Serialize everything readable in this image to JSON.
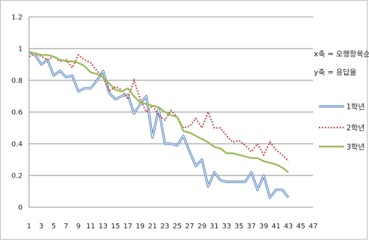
{
  "chart_data": {
    "type": "line",
    "x": [
      1,
      2,
      3,
      4,
      5,
      6,
      7,
      8,
      9,
      10,
      11,
      12,
      13,
      14,
      15,
      16,
      17,
      18,
      19,
      20,
      21,
      22,
      23,
      24,
      25,
      26,
      27,
      28,
      29,
      30,
      31,
      32,
      33,
      34,
      35,
      36,
      37,
      38,
      39,
      40,
      41,
      42,
      43
    ],
    "xticks": [
      1,
      3,
      5,
      7,
      9,
      11,
      13,
      15,
      17,
      19,
      21,
      23,
      25,
      27,
      29,
      31,
      33,
      35,
      37,
      39,
      41,
      43,
      45,
      47
    ],
    "xlim": [
      1,
      47
    ],
    "ylim": [
      0,
      1.2
    ],
    "yticks": [
      "0",
      "0.2",
      "0.4",
      "0.6",
      "0.8",
      "1",
      "1.2"
    ],
    "grid": "horizontal",
    "legend_position": "right",
    "notes": [
      "x축 = 오행항목순위",
      "y축 = 응답율"
    ],
    "series": [
      {
        "name": "1학년",
        "color": "#4f81bd",
        "style": "double",
        "values": [
          0.98,
          0.96,
          0.9,
          0.93,
          0.83,
          0.86,
          0.82,
          0.83,
          0.73,
          0.75,
          0.75,
          0.8,
          0.86,
          0.72,
          0.68,
          0.7,
          0.71,
          0.59,
          0.65,
          0.7,
          0.44,
          0.62,
          0.4,
          0.4,
          0.39,
          0.45,
          0.35,
          0.26,
          0.3,
          0.13,
          0.22,
          0.17,
          0.16,
          0.16,
          0.16,
          0.16,
          0.22,
          0.11,
          0.2,
          0.06,
          0.11,
          0.11,
          0.06
        ]
      },
      {
        "name": "2학년",
        "color": "#c0504d",
        "style": "dotted",
        "values": [
          0.95,
          0.97,
          0.95,
          0.93,
          0.95,
          0.92,
          0.93,
          0.88,
          0.96,
          0.93,
          0.91,
          0.86,
          0.82,
          0.73,
          0.76,
          0.74,
          0.68,
          0.8,
          0.68,
          0.6,
          0.64,
          0.58,
          0.55,
          0.61,
          0.57,
          0.5,
          0.51,
          0.56,
          0.5,
          0.6,
          0.5,
          0.5,
          0.45,
          0.41,
          0.42,
          0.39,
          0.35,
          0.4,
          0.33,
          0.41,
          0.36,
          0.33,
          0.29
        ]
      },
      {
        "name": "3학년",
        "color": "#9bbb59",
        "style": "solid",
        "values": [
          0.98,
          0.97,
          0.96,
          0.96,
          0.95,
          0.93,
          0.92,
          0.92,
          0.91,
          0.89,
          0.85,
          0.84,
          0.82,
          0.78,
          0.74,
          0.73,
          0.75,
          0.7,
          0.66,
          0.65,
          0.64,
          0.63,
          0.6,
          0.58,
          0.57,
          0.48,
          0.47,
          0.45,
          0.43,
          0.41,
          0.38,
          0.37,
          0.34,
          0.34,
          0.33,
          0.32,
          0.31,
          0.31,
          0.29,
          0.28,
          0.27,
          0.25,
          0.22
        ]
      }
    ]
  }
}
